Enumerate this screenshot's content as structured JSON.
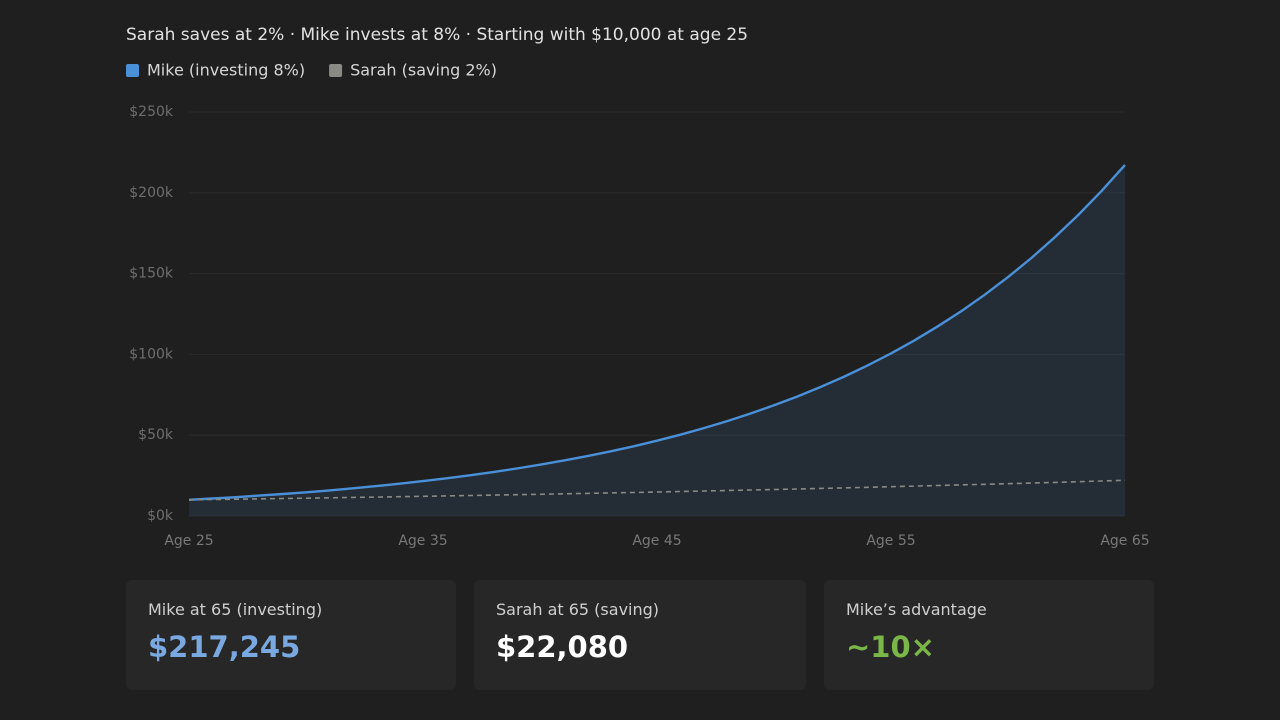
{
  "chart_data": {
    "type": "line",
    "title": "Sarah saves at 2% · Mike invests at 8% · Starting with $10,000 at age 25",
    "x": [
      25,
      26,
      27,
      28,
      29,
      30,
      31,
      32,
      33,
      34,
      35,
      36,
      37,
      38,
      39,
      40,
      41,
      42,
      43,
      44,
      45,
      46,
      47,
      48,
      49,
      50,
      51,
      52,
      53,
      54,
      55,
      56,
      57,
      58,
      59,
      60,
      61,
      62,
      63,
      64,
      65
    ],
    "series": [
      {
        "name": "Mike (investing 8%)",
        "color": "#4a90d9",
        "style": "solid",
        "area": true,
        "values": [
          10000,
          10800,
          11664,
          12597,
          13605,
          14693,
          15869,
          17138,
          18509,
          19990,
          21589,
          23316,
          25182,
          27196,
          29372,
          31722,
          34259,
          37000,
          39960,
          43157,
          46610,
          50338,
          54365,
          58715,
          63412,
          68485,
          73964,
          79881,
          86271,
          93173,
          100627,
          108677,
          117371,
          126760,
          136901,
          147853,
          159682,
          172456,
          186253,
          201153,
          217245
        ]
      },
      {
        "name": "Sarah (saving 2%)",
        "color": "#8a8a85",
        "style": "dashed",
        "area": false,
        "values": [
          10000,
          10200,
          10404,
          10612,
          10824,
          11041,
          11262,
          11487,
          11717,
          11951,
          12190,
          12434,
          12682,
          12936,
          13195,
          13459,
          13728,
          14002,
          14282,
          14568,
          14859,
          15157,
          15460,
          15769,
          16084,
          16406,
          16734,
          17069,
          17410,
          17758,
          18114,
          18476,
          18845,
          19222,
          19607,
          19999,
          20399,
          20807,
          21223,
          21647,
          22080
        ]
      }
    ],
    "xlim": [
      25,
      65
    ],
    "xticks": [
      {
        "value": 25,
        "label": "Age 25"
      },
      {
        "value": 35,
        "label": "Age 35"
      },
      {
        "value": 45,
        "label": "Age 45"
      },
      {
        "value": 55,
        "label": "Age 55"
      },
      {
        "value": 65,
        "label": "Age 65"
      }
    ],
    "ylim": [
      0,
      250000
    ],
    "yticks": [
      {
        "value": 0,
        "label": "$0k"
      },
      {
        "value": 50000,
        "label": "$50k"
      },
      {
        "value": 100000,
        "label": "$100k"
      },
      {
        "value": 150000,
        "label": "$150k"
      },
      {
        "value": 200000,
        "label": "$200k"
      },
      {
        "value": 250000,
        "label": "$250k"
      }
    ],
    "grid": true
  },
  "cards": [
    {
      "label": "Mike at 65 (investing)",
      "value": "$217,245",
      "color": "#7aa8e0"
    },
    {
      "label": "Sarah at 65 (saving)",
      "value": "$22,080",
      "color": "#ffffff"
    },
    {
      "label": "Mike’s advantage",
      "value": "~10×",
      "color": "#7ab648"
    }
  ]
}
